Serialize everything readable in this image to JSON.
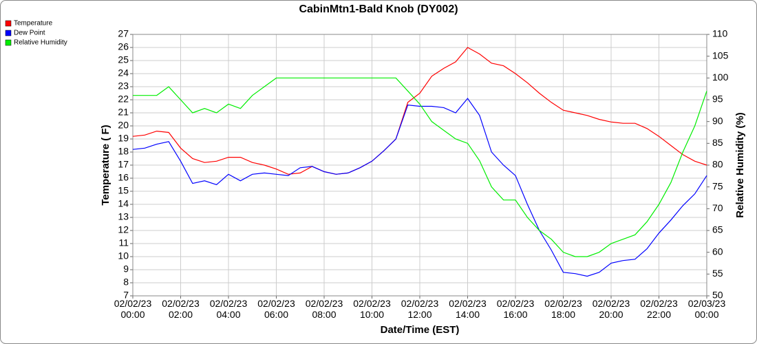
{
  "chart_data": {
    "type": "line",
    "title": "CabinMtn1-Bald Knob (DY002)",
    "x_label": "Date/Time (EST)",
    "y_label": "Temperature ( F)",
    "y2_label": "Relative Humidity (%)",
    "x": [
      "02/02/23 00:00",
      "02/02/23 00:30",
      "02/02/23 01:00",
      "02/02/23 01:30",
      "02/02/23 02:00",
      "02/02/23 02:30",
      "02/02/23 03:00",
      "02/02/23 03:30",
      "02/02/23 04:00",
      "02/02/23 04:30",
      "02/02/23 05:00",
      "02/02/23 05:30",
      "02/02/23 06:00",
      "02/02/23 06:30",
      "02/02/23 07:00",
      "02/02/23 07:30",
      "02/02/23 08:00",
      "02/02/23 08:30",
      "02/02/23 09:00",
      "02/02/23 09:30",
      "02/02/23 10:00",
      "02/02/23 10:30",
      "02/02/23 11:00",
      "02/02/23 11:30",
      "02/02/23 12:00",
      "02/02/23 12:30",
      "02/02/23 13:00",
      "02/02/23 13:30",
      "02/02/23 14:00",
      "02/02/23 14:30",
      "02/02/23 15:00",
      "02/02/23 15:30",
      "02/02/23 16:00",
      "02/02/23 16:30",
      "02/02/23 17:00",
      "02/02/23 17:30",
      "02/02/23 18:00",
      "02/02/23 18:30",
      "02/02/23 19:00",
      "02/02/23 19:30",
      "02/02/23 20:00",
      "02/02/23 20:30",
      "02/02/23 21:00",
      "02/02/23 21:30",
      "02/02/23 22:00",
      "02/02/23 22:30",
      "02/02/23 23:00",
      "02/02/23 23:30",
      "02/03/23 00:00"
    ],
    "series": [
      {
        "name": "Temperature",
        "color": "#ff0000",
        "values": [
          19.2,
          19.3,
          19.6,
          19.5,
          18.3,
          17.5,
          17.2,
          17.3,
          17.6,
          17.6,
          17.2,
          17.0,
          16.7,
          16.3,
          16.4,
          16.9,
          16.5,
          16.3,
          16.4,
          16.8,
          17.3,
          18.1,
          19.0,
          21.8,
          22.5,
          23.8,
          24.4,
          24.9,
          26.0,
          25.5,
          24.8,
          24.6,
          24.0,
          23.3,
          22.5,
          21.8,
          21.2,
          21.0,
          20.8,
          20.5,
          20.3,
          20.2,
          20.2,
          19.8,
          19.2,
          18.5,
          17.8,
          17.3,
          17.0
        ]
      },
      {
        "name": "Dew Point",
        "color": "#0000ff",
        "values": [
          18.2,
          18.3,
          18.6,
          18.8,
          17.3,
          15.6,
          15.8,
          15.5,
          16.3,
          15.8,
          16.3,
          16.4,
          16.3,
          16.2,
          16.8,
          16.9,
          16.5,
          16.3,
          16.4,
          16.8,
          17.3,
          18.1,
          19.0,
          21.6,
          21.5,
          21.5,
          21.4,
          21.0,
          22.1,
          20.8,
          18.0,
          17.0,
          16.2,
          14.0,
          12.0,
          10.5,
          8.8,
          8.7,
          8.5,
          8.8,
          9.5,
          9.7,
          9.8,
          10.6,
          11.8,
          12.8,
          13.9,
          14.8,
          16.2
        ]
      },
      {
        "name": "Relative Humidity",
        "color": "#00ee00",
        "axis": "y2",
        "values": [
          96,
          96,
          96,
          98,
          95,
          92,
          93,
          92,
          94,
          93,
          96,
          98,
          100,
          100,
          100,
          100,
          100,
          100,
          100,
          100,
          100,
          100,
          100,
          97,
          94,
          90,
          88,
          86,
          85,
          81,
          75,
          72,
          72,
          68,
          65,
          63,
          60,
          59,
          59,
          60,
          62,
          63,
          64,
          67,
          71,
          76,
          83,
          89,
          97
        ]
      }
    ],
    "xlim": [
      "02/02/23 00:00",
      "02/03/23 00:00"
    ],
    "xticks": [
      "02/02/23 00:00",
      "02/02/23 02:00",
      "02/02/23 04:00",
      "02/02/23 06:00",
      "02/02/23 08:00",
      "02/02/23 10:00",
      "02/02/23 12:00",
      "02/02/23 14:00",
      "02/02/23 16:00",
      "02/02/23 18:00",
      "02/02/23 20:00",
      "02/02/23 22:00",
      "02/03/23 00:00"
    ],
    "ylim": [
      7,
      27
    ],
    "yticks": [
      7,
      8,
      9,
      10,
      11,
      12,
      13,
      14,
      15,
      16,
      17,
      18,
      19,
      20,
      21,
      22,
      23,
      24,
      25,
      26,
      27
    ],
    "y2lim": [
      50,
      110
    ],
    "y2ticks": [
      50,
      55,
      60,
      65,
      70,
      75,
      80,
      85,
      90,
      95,
      100,
      105,
      110
    ],
    "grid": true,
    "legend": "top-left"
  }
}
